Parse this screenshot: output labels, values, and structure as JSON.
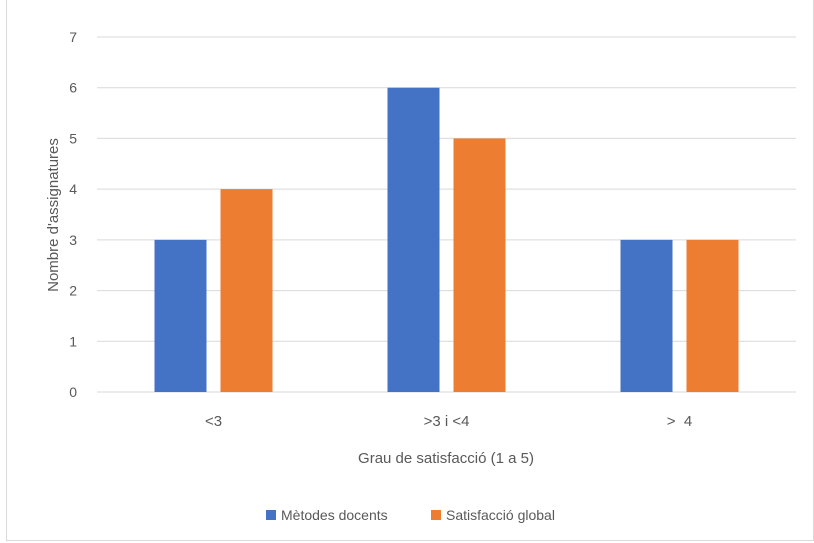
{
  "chart_data": {
    "type": "bar",
    "title": "",
    "xlabel": "Grau de satisfacció (1 a 5)",
    "ylabel": "Nombre d'assignatures",
    "categories": [
      "<3",
      ">3 i <4",
      ">  4"
    ],
    "series": [
      {
        "name": "Mètodes docents",
        "values": [
          3,
          6,
          3
        ],
        "color": "#4472C4"
      },
      {
        "name": "Satisfacció global",
        "values": [
          4,
          5,
          3
        ],
        "color": "#ED7D31"
      }
    ],
    "ylim": [
      0,
      7
    ],
    "yticks": [
      0,
      1,
      2,
      3,
      4,
      5,
      6,
      7
    ],
    "grid": true,
    "legend_position": "bottom"
  }
}
